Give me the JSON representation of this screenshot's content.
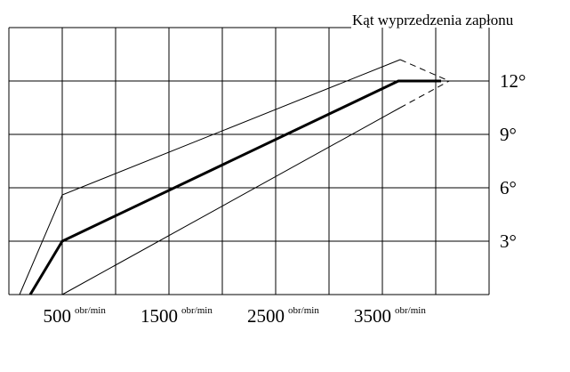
{
  "chart_data": {
    "type": "line",
    "title": "Kąt wyprzedzenia zapłonu",
    "x_unit": "obr/min",
    "xlim": [
      0,
      4500
    ],
    "xticks": [
      500,
      1500,
      2500,
      3500
    ],
    "x_gridlines": [
      0,
      500,
      1000,
      1500,
      2000,
      2500,
      3000,
      3500,
      4000,
      4500
    ],
    "ylim": [
      0,
      15
    ],
    "yticks": [
      {
        "value": 3,
        "label": "3°"
      },
      {
        "value": 6,
        "label": "6°"
      },
      {
        "value": 9,
        "label": "9°"
      },
      {
        "value": 12,
        "label": "12°"
      }
    ],
    "y_gridlines": [
      0,
      3,
      6,
      9,
      12
    ],
    "grid": true,
    "series": [
      {
        "color": "#000000",
        "width": 1,
        "dash_last": true,
        "x": [
          100,
          500,
          3667,
          4125
        ],
        "values": [
          0,
          5.6,
          13.2,
          12
        ]
      },
      {
        "color": "#000000",
        "width": 3,
        "dash_last": false,
        "x": [
          200,
          500,
          3650,
          4050
        ],
        "values": [
          0,
          3,
          12,
          12
        ]
      },
      {
        "color": "#000000",
        "width": 1,
        "dash_last": true,
        "x": [
          500,
          3667,
          4125
        ],
        "values": [
          0,
          10.5,
          12
        ]
      }
    ]
  }
}
